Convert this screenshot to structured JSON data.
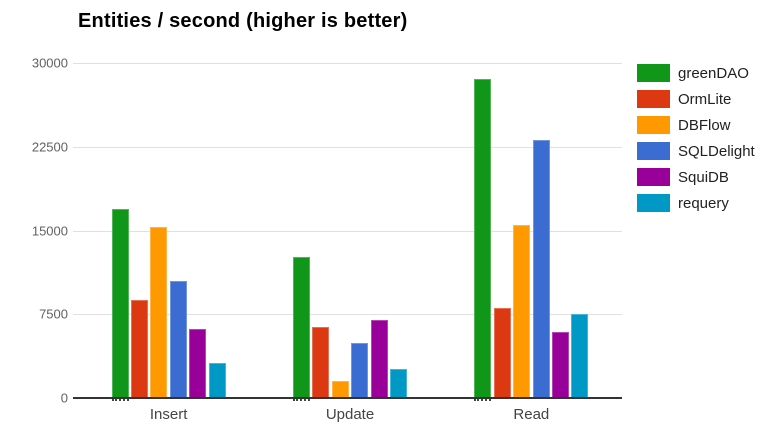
{
  "title": "Entities / second (higher is better)",
  "chart_data": {
    "type": "bar",
    "title": "Entities / second (higher is better)",
    "categories": [
      "Insert",
      "Update",
      "Read"
    ],
    "series": [
      {
        "name": "greenDAO",
        "color": "#109618",
        "values": [
          16900,
          12600,
          28600
        ]
      },
      {
        "name": "OrmLite",
        "color": "#dc3912",
        "values": [
          8800,
          6400,
          8100
        ]
      },
      {
        "name": "DBFlow",
        "color": "#ff9900",
        "values": [
          15300,
          1500,
          15500
        ]
      },
      {
        "name": "SQLDelight",
        "color": "#3b6cd1",
        "values": [
          10500,
          4900,
          23100
        ]
      },
      {
        "name": "SquiDB",
        "color": "#990099",
        "values": [
          6200,
          7000,
          5900
        ]
      },
      {
        "name": "requery",
        "color": "#0099c6",
        "values": [
          3100,
          2600,
          7500
        ]
      }
    ],
    "xlabel": "",
    "ylabel": "",
    "ylim": [
      0,
      30000
    ],
    "yticks": [
      0,
      7500,
      15000,
      22500,
      30000
    ],
    "grid": true,
    "legend_position": "right",
    "axis_colors": {
      "gridline": "#e0e0e0",
      "baseline": "#333333",
      "tick_label": "#616161",
      "category_label": "#444444",
      "legend_label": "#212121",
      "title": "#000000"
    }
  }
}
